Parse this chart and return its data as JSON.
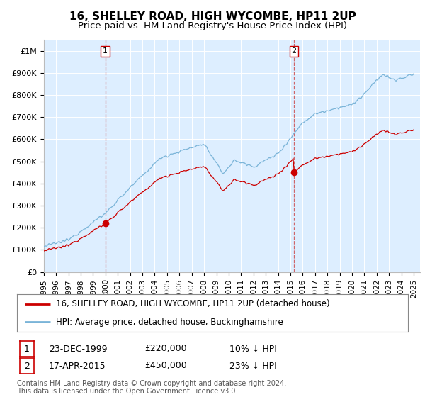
{
  "title": "16, SHELLEY ROAD, HIGH WYCOMBE, HP11 2UP",
  "subtitle": "Price paid vs. HM Land Registry's House Price Index (HPI)",
  "ylim": [
    0,
    1050000
  ],
  "yticks": [
    0,
    100000,
    200000,
    300000,
    400000,
    500000,
    600000,
    700000,
    800000,
    900000,
    1000000
  ],
  "ytick_labels": [
    "£0",
    "£100K",
    "£200K",
    "£300K",
    "£400K",
    "£500K",
    "£600K",
    "£700K",
    "£800K",
    "£900K",
    "£1M"
  ],
  "background_color": "#ffffff",
  "plot_bg_color": "#ddeeff",
  "grid_color": "#ffffff",
  "hpi_color": "#7ab4d8",
  "price_color": "#cc0000",
  "purchase1_year": 1999.98,
  "purchase1_price": 220000,
  "purchase2_year": 2015.29,
  "purchase2_price": 450000,
  "legend_line1": "16, SHELLEY ROAD, HIGH WYCOMBE, HP11 2UP (detached house)",
  "legend_line2": "HPI: Average price, detached house, Buckinghamshire",
  "table_row1_num": "1",
  "table_row1_date": "23-DEC-1999",
  "table_row1_price": "£220,000",
  "table_row1_hpi": "10% ↓ HPI",
  "table_row2_num": "2",
  "table_row2_date": "17-APR-2015",
  "table_row2_price": "£450,000",
  "table_row2_hpi": "23% ↓ HPI",
  "footer": "Contains HM Land Registry data © Crown copyright and database right 2024.\nThis data is licensed under the Open Government Licence v3.0.",
  "title_fontsize": 11,
  "subtitle_fontsize": 9.5,
  "tick_fontsize": 8,
  "legend_fontsize": 8.5,
  "footer_fontsize": 7
}
